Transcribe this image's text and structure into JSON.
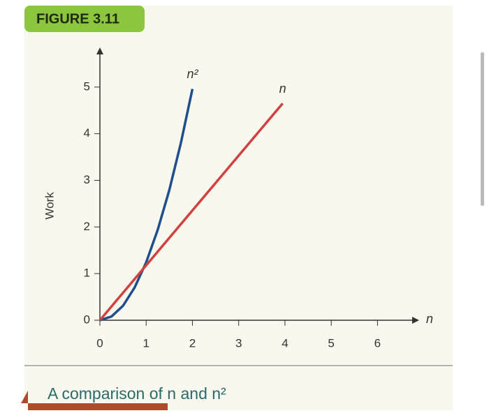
{
  "figure_label": "FIGURE 3.11",
  "caption": "A comparison of n and n²",
  "chart_data": {
    "type": "line",
    "x_label": "n",
    "y_label": "Work",
    "xlim": [
      0,
      6.9
    ],
    "ylim": [
      0,
      5.85
    ],
    "xticks": [
      0,
      1,
      2,
      3,
      4,
      5,
      6
    ],
    "yticks": [
      0,
      1,
      2,
      3,
      4,
      5
    ],
    "series": [
      {
        "name": "n²",
        "color": "#1f4e8c",
        "x": [
          0,
          0.25,
          0.5,
          0.75,
          1,
          1.25,
          1.5,
          1.75,
          2
        ],
        "values": [
          0,
          0.08,
          0.31,
          0.7,
          1.24,
          1.94,
          2.79,
          3.8,
          4.96
        ]
      },
      {
        "name": "n",
        "color": "#d0413f",
        "x": [
          0,
          3.95
        ],
        "values": [
          0,
          4.65
        ]
      }
    ]
  }
}
